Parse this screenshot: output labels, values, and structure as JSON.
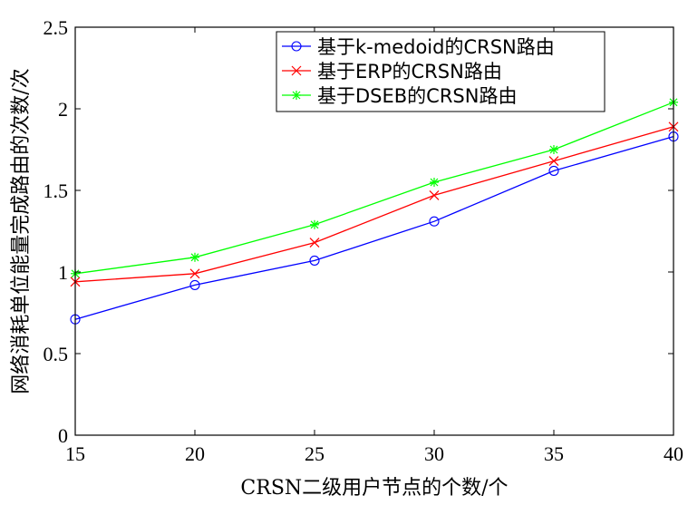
{
  "chart_data": {
    "type": "line",
    "xlabel": "CRSN二级用户节点的个数/个",
    "ylabel": "网络消耗单位能量完成路由的次数/次",
    "xlim": [
      15,
      40
    ],
    "ylim": [
      0,
      2.5
    ],
    "x": [
      15,
      20,
      25,
      30,
      35,
      40
    ],
    "x_ticks": [
      "15",
      "20",
      "25",
      "30",
      "35",
      "40"
    ],
    "y_ticks": [
      "0",
      "0.5",
      "1",
      "1.5",
      "2",
      "2.5"
    ],
    "y_tick_values": [
      0,
      0.5,
      1,
      1.5,
      2,
      2.5
    ],
    "grid": false,
    "legend_position": "top-right",
    "series": [
      {
        "name": "基于k-medoid的CRSN路由",
        "values": [
          0.71,
          0.92,
          1.07,
          1.31,
          1.62,
          1.83
        ],
        "color": "#0000ff",
        "marker": "circle"
      },
      {
        "name": "基于ERP的CRSN路由",
        "values": [
          0.94,
          0.99,
          1.18,
          1.47,
          1.68,
          1.89
        ],
        "color": "#ff0000",
        "marker": "x"
      },
      {
        "name": "基于DSEB的CRSN路由",
        "values": [
          0.99,
          1.09,
          1.29,
          1.55,
          1.75,
          2.04
        ],
        "color": "#00ff00",
        "marker": "star"
      }
    ]
  }
}
